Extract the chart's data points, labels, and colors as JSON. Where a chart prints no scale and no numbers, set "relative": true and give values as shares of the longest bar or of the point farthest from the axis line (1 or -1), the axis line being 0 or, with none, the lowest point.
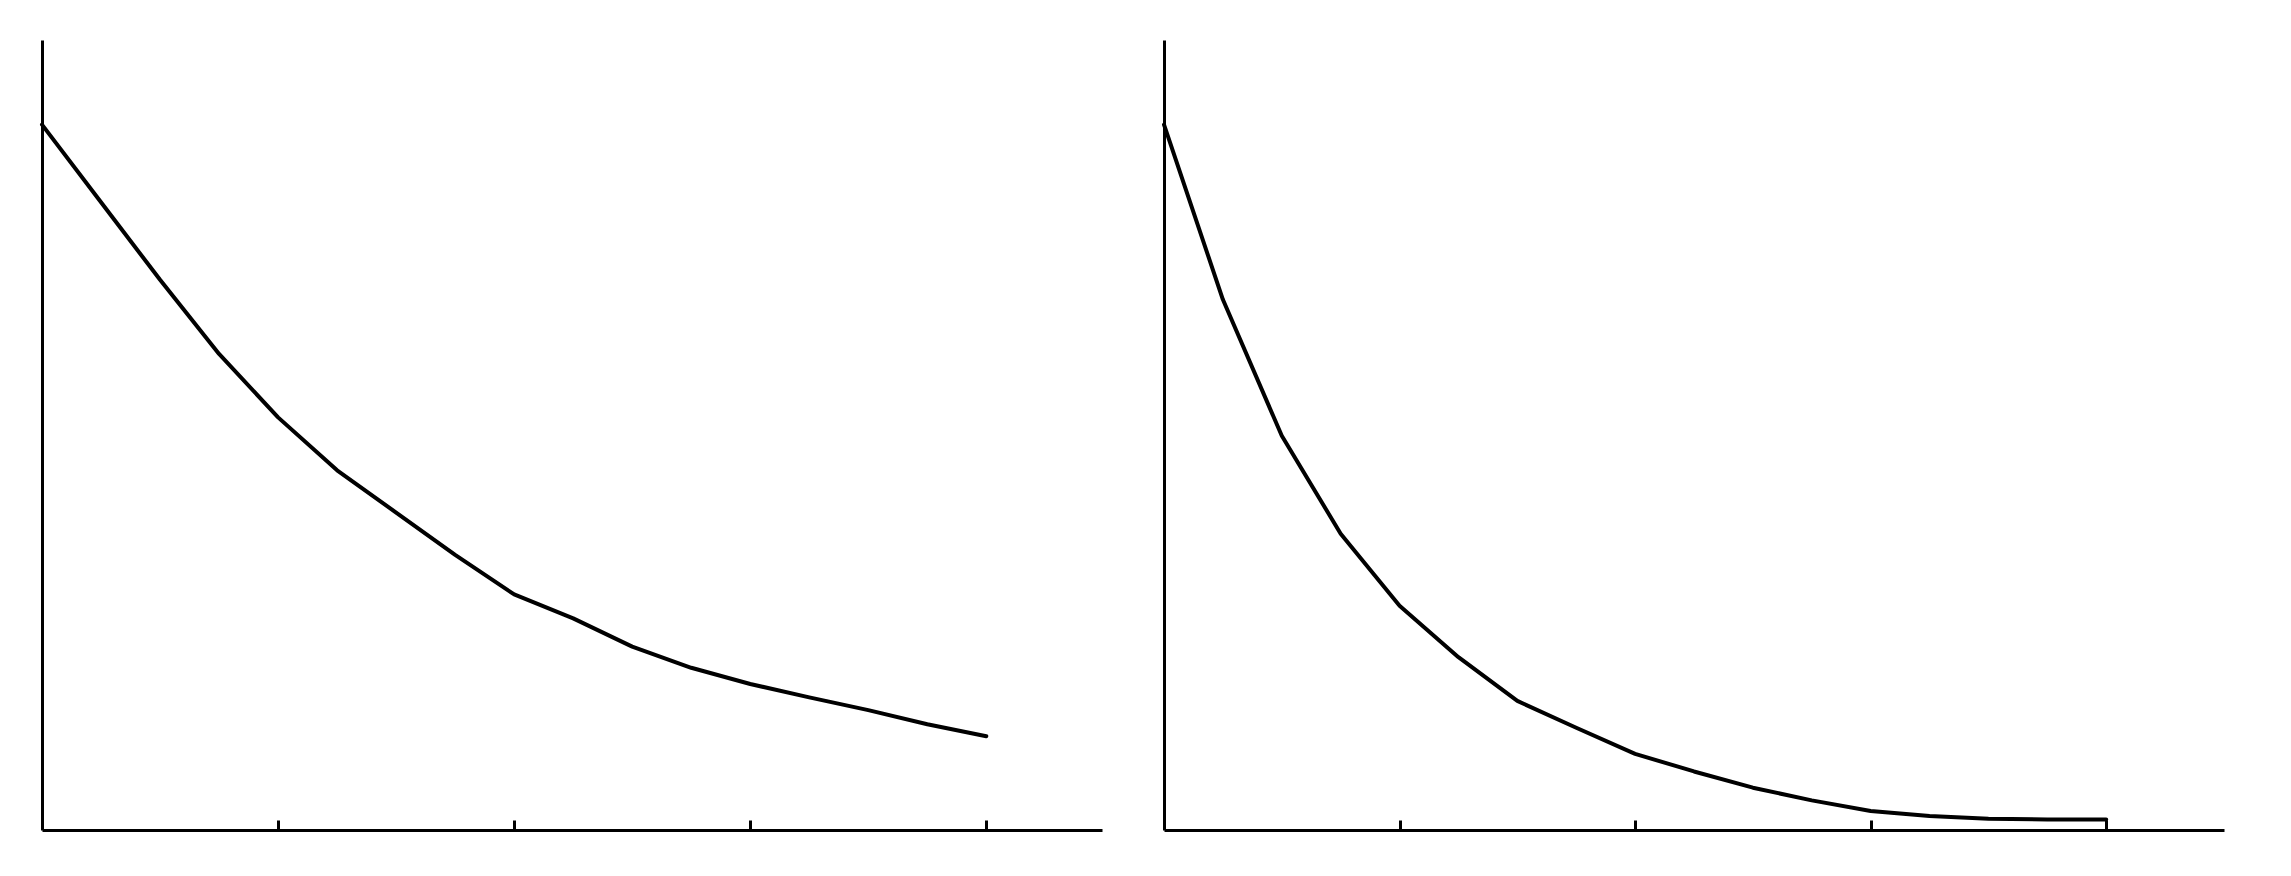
{
  "chart_data": [
    {
      "type": "line",
      "relative": true,
      "categories": [
        null,
        null,
        null,
        null,
        null,
        null,
        null,
        null,
        null,
        null,
        null,
        null,
        null,
        null,
        null,
        null,
        null
      ],
      "series": [
        {
          "color": "#000000",
          "values": [
            1,
            0.89,
            0.78,
            0.675,
            0.585,
            0.51,
            0.45,
            0.39,
            0.334,
            0.3,
            0.26,
            0.23,
            0.207,
            0.188,
            0.17,
            0.15,
            0.133
          ]
        }
      ]
    },
    {
      "type": "line",
      "relative": true,
      "categories": [
        null,
        null,
        null,
        null,
        null,
        null,
        null,
        null,
        null,
        null,
        null,
        null,
        null,
        null,
        null,
        null,
        null
      ],
      "series": [
        {
          "color": "#000000",
          "values": [
            1,
            0.752,
            0.559,
            0.42,
            0.318,
            0.245,
            0.183,
            0.145,
            0.108,
            0.083,
            0.06,
            0.042,
            0.027,
            0.02,
            0.016,
            0.015,
            0.015
          ]
        }
      ]
    }
  ]
}
